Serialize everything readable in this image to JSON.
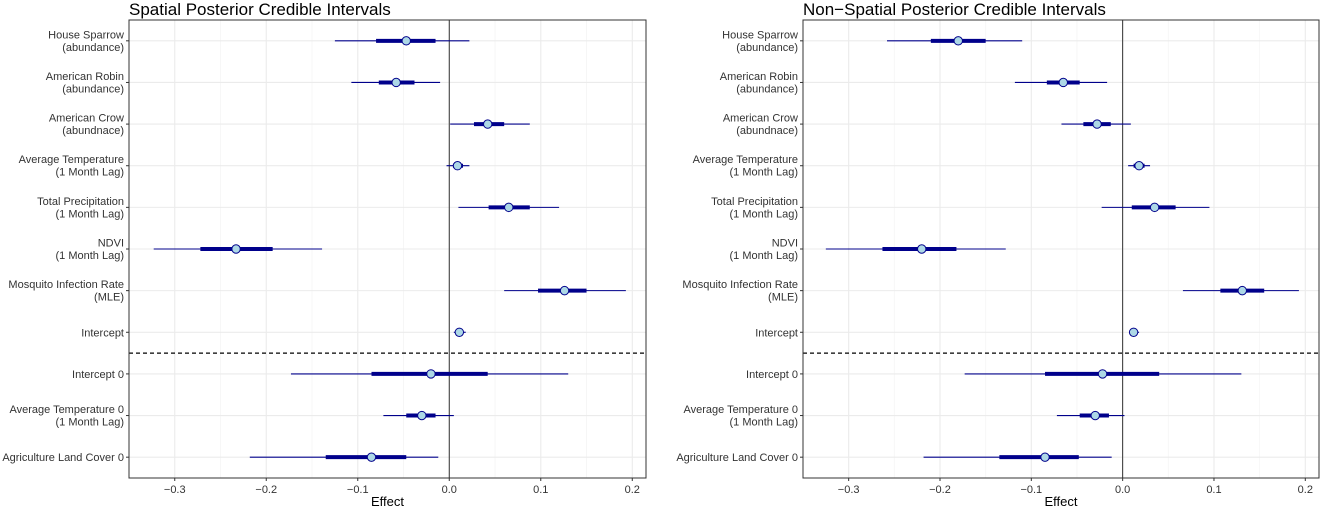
{
  "chart_data": [
    {
      "type": "interval",
      "title": "Spatial Posterior Credible Intervals",
      "xlabel": "Effect",
      "ylabel": "",
      "xlim": [
        -0.35,
        0.215
      ],
      "xticks": [
        -0.3,
        -0.2,
        -0.1,
        0.0,
        0.1,
        0.2
      ],
      "xtick_labels": [
        "−0.3",
        "−0.2",
        "−0.1",
        "0.0",
        "0.1",
        "0.2"
      ],
      "grid": true,
      "reference_line_x": 0,
      "separator_after_index": 7,
      "rows": [
        {
          "label": [
            "House Sparrow",
            "(abundance)"
          ],
          "median": -0.047,
          "inner": [
            -0.08,
            -0.015
          ],
          "outer": [
            -0.125,
            0.022
          ]
        },
        {
          "label": [
            "American Robin",
            "(abundance)"
          ],
          "median": -0.058,
          "inner": [
            -0.077,
            -0.038
          ],
          "outer": [
            -0.107,
            -0.01
          ]
        },
        {
          "label": [
            "American Crow",
            "(abundnace)"
          ],
          "median": 0.042,
          "inner": [
            0.027,
            0.06
          ],
          "outer": [
            0.001,
            0.088
          ]
        },
        {
          "label": [
            "Average Temperature",
            "(1 Month Lag)"
          ],
          "median": 0.009,
          "inner": [
            0.004,
            0.015
          ],
          "outer": [
            -0.003,
            0.022
          ]
        },
        {
          "label": [
            "Total Precipitation",
            "(1 Month Lag)"
          ],
          "median": 0.065,
          "inner": [
            0.043,
            0.088
          ],
          "outer": [
            0.01,
            0.12
          ]
        },
        {
          "label": [
            "NDVI",
            "(1 Month Lag)"
          ],
          "median": -0.233,
          "inner": [
            -0.272,
            -0.193
          ],
          "outer": [
            -0.323,
            -0.139
          ]
        },
        {
          "label": [
            "Mosquito Infection Rate",
            "(MLE)"
          ],
          "median": 0.126,
          "inner": [
            0.097,
            0.15
          ],
          "outer": [
            0.06,
            0.193
          ]
        },
        {
          "label": [
            "Intercept"
          ],
          "median": 0.011,
          "inner": [
            0.008,
            0.015
          ],
          "outer": [
            0.005,
            0.018
          ]
        },
        {
          "label": [
            "Intercept 0"
          ],
          "median": -0.02,
          "inner": [
            -0.085,
            0.042
          ],
          "outer": [
            -0.173,
            0.13
          ]
        },
        {
          "label": [
            "Average Temperature 0",
            "(1 Month Lag)"
          ],
          "median": -0.03,
          "inner": [
            -0.047,
            -0.015
          ],
          "outer": [
            -0.072,
            0.005
          ]
        },
        {
          "label": [
            "Agriculture Land Cover 0"
          ],
          "median": -0.085,
          "inner": [
            -0.135,
            -0.047
          ],
          "outer": [
            -0.218,
            -0.012
          ]
        }
      ]
    },
    {
      "type": "interval",
      "title": "Non−Spatial Posterior Credible Intervals",
      "xlabel": "Effect",
      "ylabel": "",
      "xlim": [
        -0.35,
        0.215
      ],
      "xticks": [
        -0.3,
        -0.2,
        -0.1,
        0.0,
        0.1,
        0.2
      ],
      "xtick_labels": [
        "−0.3",
        "−0.2",
        "−0.1",
        "0.0",
        "0.1",
        "0.2"
      ],
      "grid": true,
      "reference_line_x": 0,
      "separator_after_index": 7,
      "rows": [
        {
          "label": [
            "House Sparrow",
            "(abundance)"
          ],
          "median": -0.18,
          "inner": [
            -0.21,
            -0.15
          ],
          "outer": [
            -0.258,
            -0.11
          ]
        },
        {
          "label": [
            "American Robin",
            "(abundance)"
          ],
          "median": -0.065,
          "inner": [
            -0.083,
            -0.047
          ],
          "outer": [
            -0.118,
            -0.017
          ]
        },
        {
          "label": [
            "American Crow",
            "(abundnace)"
          ],
          "median": -0.028,
          "inner": [
            -0.043,
            -0.013
          ],
          "outer": [
            -0.067,
            0.009
          ]
        },
        {
          "label": [
            "Average Temperature",
            "(1 Month Lag)"
          ],
          "median": 0.018,
          "inner": [
            0.012,
            0.024
          ],
          "outer": [
            0.006,
            0.03
          ]
        },
        {
          "label": [
            "Total Precipitation",
            "(1 Month Lag)"
          ],
          "median": 0.035,
          "inner": [
            0.01,
            0.058
          ],
          "outer": [
            -0.023,
            0.095
          ]
        },
        {
          "label": [
            "NDVI",
            "(1 Month Lag)"
          ],
          "median": -0.22,
          "inner": [
            -0.263,
            -0.182
          ],
          "outer": [
            -0.325,
            -0.128
          ]
        },
        {
          "label": [
            "Mosquito Infection Rate",
            "(MLE)"
          ],
          "median": 0.131,
          "inner": [
            0.107,
            0.155
          ],
          "outer": [
            0.066,
            0.193
          ]
        },
        {
          "label": [
            "Intercept"
          ],
          "median": 0.012,
          "inner": [
            0.01,
            0.015
          ],
          "outer": [
            0.007,
            0.018
          ]
        },
        {
          "label": [
            "Intercept 0"
          ],
          "median": -0.022,
          "inner": [
            -0.085,
            0.04
          ],
          "outer": [
            -0.173,
            0.13
          ]
        },
        {
          "label": [
            "Average Temperature 0",
            "(1 Month Lag)"
          ],
          "median": -0.03,
          "inner": [
            -0.047,
            -0.015
          ],
          "outer": [
            -0.072,
            0.002
          ]
        },
        {
          "label": [
            "Agriculture Land Cover 0"
          ],
          "median": -0.085,
          "inner": [
            -0.135,
            -0.048
          ],
          "outer": [
            -0.218,
            -0.012
          ]
        }
      ]
    }
  ],
  "colors": {
    "interval": "#00008B",
    "point_fill": "#ADD8E6",
    "grid_major": "#EBEBEB",
    "grid_minor": "#F5F5F5",
    "panel_border": "#333333"
  }
}
